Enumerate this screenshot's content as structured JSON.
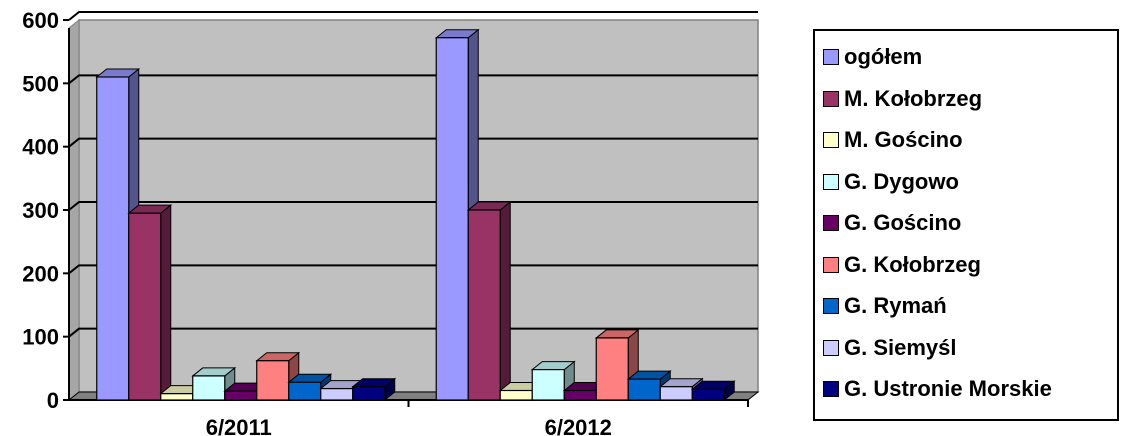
{
  "chart_data": {
    "type": "bar",
    "categories": [
      "6/2011",
      "6/2012"
    ],
    "series": [
      {
        "name": "ogółem",
        "values": [
          510,
          572
        ],
        "color": "#9999ff"
      },
      {
        "name": "M. Kołobrzeg",
        "values": [
          295,
          300
        ],
        "color": "#993366"
      },
      {
        "name": "M. Gościno",
        "values": [
          10,
          15
        ],
        "color": "#ffffcc"
      },
      {
        "name": "G. Dygowo",
        "values": [
          38,
          48
        ],
        "color": "#ccffff"
      },
      {
        "name": "G. Gościno",
        "values": [
          14,
          15
        ],
        "color": "#660066"
      },
      {
        "name": "G. Kołobrzeg",
        "values": [
          62,
          98
        ],
        "color": "#ff8080"
      },
      {
        "name": "G. Rymań",
        "values": [
          28,
          33
        ],
        "color": "#0066cc"
      },
      {
        "name": "G. Siemyśl",
        "values": [
          18,
          21
        ],
        "color": "#ccccff"
      },
      {
        "name": "G. Ustronie Morskie",
        "values": [
          21,
          17
        ],
        "color": "#000080"
      }
    ],
    "ylim": [
      0,
      600
    ],
    "yticks": [
      "0",
      "100",
      "200",
      "300",
      "400",
      "500",
      "600"
    ],
    "grid": true,
    "legend_position": "right",
    "plot_background": "#c0c0c0"
  }
}
